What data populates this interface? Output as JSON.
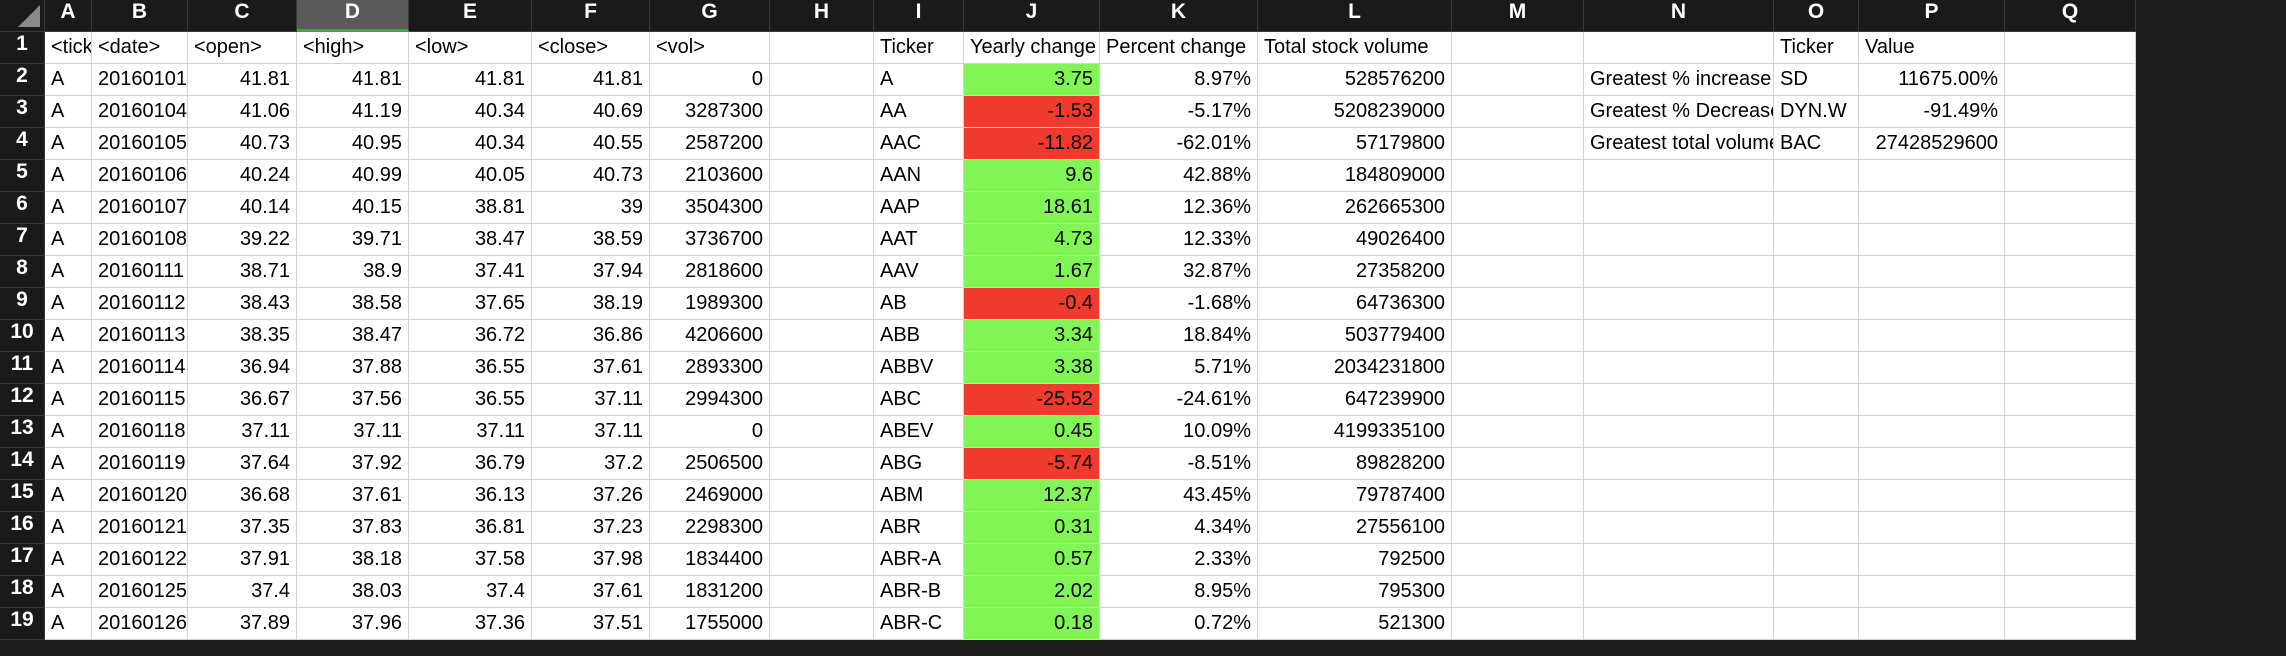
{
  "colors": {
    "positive": "#82f556",
    "negative": "#ee3b2d"
  },
  "selected_column": "D",
  "columns": [
    "A",
    "B",
    "C",
    "D",
    "E",
    "F",
    "G",
    "H",
    "I",
    "J",
    "K",
    "L",
    "M",
    "N",
    "O",
    "P",
    "Q"
  ],
  "rows": [
    [
      "<ticker>",
      "<date>",
      "<open>",
      "<high>",
      "<low>",
      "<close>",
      "<vol>",
      "",
      "Ticker",
      "Yearly change",
      "Percent change",
      "Total stock volume",
      "",
      "",
      "Ticker",
      "Value",
      ""
    ],
    [
      "A",
      "20160101",
      "41.81",
      "41.81",
      "41.81",
      "41.81",
      "0",
      "",
      "A",
      "3.75",
      "8.97%",
      "528576200",
      "",
      "Greatest % increase",
      "SD",
      "11675.00%",
      ""
    ],
    [
      "A",
      "20160104",
      "41.06",
      "41.19",
      "40.34",
      "40.69",
      "3287300",
      "",
      "AA",
      "-1.53",
      "-5.17%",
      "5208239000",
      "",
      "Greatest % Decrease",
      "DYN.W",
      "-91.49%",
      ""
    ],
    [
      "A",
      "20160105",
      "40.73",
      "40.95",
      "40.34",
      "40.55",
      "2587200",
      "",
      "AAC",
      "-11.82",
      "-62.01%",
      "57179800",
      "",
      "Greatest total volume",
      "BAC",
      "27428529600",
      ""
    ],
    [
      "A",
      "20160106",
      "40.24",
      "40.99",
      "40.05",
      "40.73",
      "2103600",
      "",
      "AAN",
      "9.6",
      "42.88%",
      "184809000",
      "",
      "",
      "",
      "",
      ""
    ],
    [
      "A",
      "20160107",
      "40.14",
      "40.15",
      "38.81",
      "39",
      "3504300",
      "",
      "AAP",
      "18.61",
      "12.36%",
      "262665300",
      "",
      "",
      "",
      "",
      ""
    ],
    [
      "A",
      "20160108",
      "39.22",
      "39.71",
      "38.47",
      "38.59",
      "3736700",
      "",
      "AAT",
      "4.73",
      "12.33%",
      "49026400",
      "",
      "",
      "",
      "",
      ""
    ],
    [
      "A",
      "20160111",
      "38.71",
      "38.9",
      "37.41",
      "37.94",
      "2818600",
      "",
      "AAV",
      "1.67",
      "32.87%",
      "27358200",
      "",
      "",
      "",
      "",
      ""
    ],
    [
      "A",
      "20160112",
      "38.43",
      "38.58",
      "37.65",
      "38.19",
      "1989300",
      "",
      "AB",
      "-0.4",
      "-1.68%",
      "64736300",
      "",
      "",
      "",
      "",
      ""
    ],
    [
      "A",
      "20160113",
      "38.35",
      "38.47",
      "36.72",
      "36.86",
      "4206600",
      "",
      "ABB",
      "3.34",
      "18.84%",
      "503779400",
      "",
      "",
      "",
      "",
      ""
    ],
    [
      "A",
      "20160114",
      "36.94",
      "37.88",
      "36.55",
      "37.61",
      "2893300",
      "",
      "ABBV",
      "3.38",
      "5.71%",
      "2034231800",
      "",
      "",
      "",
      "",
      ""
    ],
    [
      "A",
      "20160115",
      "36.67",
      "37.56",
      "36.55",
      "37.11",
      "2994300",
      "",
      "ABC",
      "-25.52",
      "-24.61%",
      "647239900",
      "",
      "",
      "",
      "",
      ""
    ],
    [
      "A",
      "20160118",
      "37.11",
      "37.11",
      "37.11",
      "37.11",
      "0",
      "",
      "ABEV",
      "0.45",
      "10.09%",
      "4199335100",
      "",
      "",
      "",
      "",
      ""
    ],
    [
      "A",
      "20160119",
      "37.64",
      "37.92",
      "36.79",
      "37.2",
      "2506500",
      "",
      "ABG",
      "-5.74",
      "-8.51%",
      "89828200",
      "",
      "",
      "",
      "",
      ""
    ],
    [
      "A",
      "20160120",
      "36.68",
      "37.61",
      "36.13",
      "37.26",
      "2469000",
      "",
      "ABM",
      "12.37",
      "43.45%",
      "79787400",
      "",
      "",
      "",
      "",
      ""
    ],
    [
      "A",
      "20160121",
      "37.35",
      "37.83",
      "36.81",
      "37.23",
      "2298300",
      "",
      "ABR",
      "0.31",
      "4.34%",
      "27556100",
      "",
      "",
      "",
      "",
      ""
    ],
    [
      "A",
      "20160122",
      "37.91",
      "38.18",
      "37.58",
      "37.98",
      "1834400",
      "",
      "ABR-A",
      "0.57",
      "2.33%",
      "792500",
      "",
      "",
      "",
      "",
      ""
    ],
    [
      "A",
      "20160125",
      "37.4",
      "38.03",
      "37.4",
      "37.61",
      "1831200",
      "",
      "ABR-B",
      "2.02",
      "8.95%",
      "795300",
      "",
      "",
      "",
      "",
      ""
    ],
    [
      "A",
      "20160126",
      "37.89",
      "37.96",
      "37.36",
      "37.51",
      "1755000",
      "",
      "ABR-C",
      "0.18",
      "0.72%",
      "521300",
      "",
      "",
      "",
      "",
      ""
    ]
  ]
}
